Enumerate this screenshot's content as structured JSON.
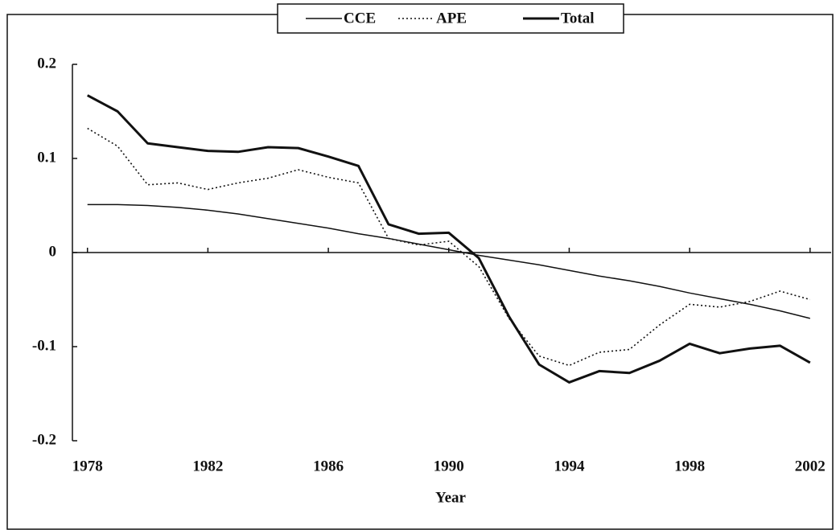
{
  "chart_data": {
    "type": "line",
    "x": [
      1978,
      1979,
      1980,
      1981,
      1982,
      1983,
      1984,
      1985,
      1986,
      1987,
      1988,
      1989,
      1990,
      1991,
      1992,
      1993,
      1994,
      1995,
      1996,
      1997,
      1998,
      1999,
      2000,
      2001,
      2002
    ],
    "series": [
      {
        "name": "CCE",
        "color": "#111111",
        "line_style": "solid",
        "values": [
          0.051,
          0.051,
          0.05,
          0.048,
          0.045,
          0.041,
          0.036,
          0.031,
          0.026,
          0.02,
          0.015,
          0.009,
          0.003,
          -0.003,
          -0.008,
          -0.013,
          -0.019,
          -0.025,
          -0.03,
          -0.036,
          -0.043,
          -0.049,
          -0.055,
          -0.062,
          -0.07
        ]
      },
      {
        "name": "APE",
        "color": "#111111",
        "line_style": "dotted",
        "values": [
          0.132,
          0.113,
          0.072,
          0.074,
          0.067,
          0.074,
          0.079,
          0.088,
          0.08,
          0.074,
          0.015,
          0.008,
          0.012,
          -0.015,
          -0.07,
          -0.11,
          -0.12,
          -0.106,
          -0.103,
          -0.077,
          -0.055,
          -0.058,
          -0.052,
          -0.041,
          -0.05
        ]
      },
      {
        "name": "Total",
        "color": "#111111",
        "line_style": "thick",
        "values": [
          0.167,
          0.15,
          0.116,
          0.112,
          0.108,
          0.107,
          0.112,
          0.111,
          0.102,
          0.092,
          0.03,
          0.02,
          0.021,
          -0.006,
          -0.068,
          -0.119,
          -0.138,
          -0.126,
          -0.128,
          -0.115,
          -0.097,
          -0.107,
          -0.102,
          -0.099,
          -0.117
        ]
      }
    ],
    "x_label": "Year",
    "xlim": [
      1977.5,
      2002.7
    ],
    "xticks": [
      1978,
      1982,
      1986,
      1990,
      1994,
      1998,
      2002
    ],
    "ylim": [
      -0.2,
      0.2
    ],
    "yticks": [
      0.2,
      0.1,
      0,
      -0.1,
      -0.2
    ],
    "legend": "top"
  }
}
